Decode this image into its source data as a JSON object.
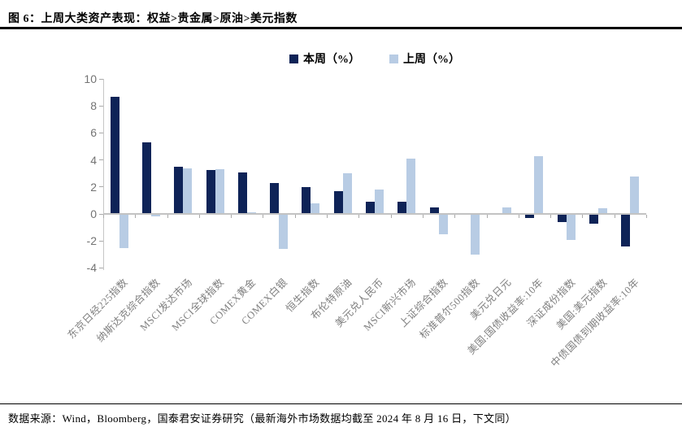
{
  "header": {
    "title": "图 6：上周大类资产表现：权益>贵金属>原油>美元指数"
  },
  "footer": {
    "source": "数据来源：Wind，Bloomberg，国泰君安证券研究（最新海外市场数据均截至 2024 年 8 月 16 日，下文同）"
  },
  "chart_data": {
    "type": "bar",
    "title": "上周大类资产表现：权益>贵金属>原油>美元指数",
    "categories": [
      "东京日经225指数",
      "纳斯达克综合指数",
      "MSCI发达市场",
      "MSCI全球指数",
      "COMEX黄金",
      "COMEX白银",
      "恒生指数",
      "布伦特原油",
      "美元兑人民币",
      "MSCI新兴市场",
      "上证综合指数",
      "标准普尔500指数",
      "美元兑日元",
      "美国:国债收益率:10年",
      "深证成份指数",
      "美国:美元指数",
      "中债国债到期收益率:10年"
    ],
    "series": [
      {
        "name": "本周（%）",
        "color": "#0E2357",
        "values": [
          8.7,
          5.3,
          3.5,
          3.25,
          3.1,
          2.3,
          2.0,
          1.7,
          0.9,
          0.9,
          0.5,
          0,
          0,
          -0.3,
          -0.6,
          -0.7,
          -2.4
        ]
      },
      {
        "name": "上周（%）",
        "color": "#B8CCE4",
        "values": [
          -2.5,
          -0.2,
          3.4,
          3.3,
          0.15,
          -2.6,
          0.8,
          3.0,
          1.8,
          4.1,
          -1.5,
          -3.0,
          0.5,
          4.3,
          -1.9,
          0.45,
          2.8
        ]
      }
    ],
    "ylim": [
      -4,
      10
    ],
    "yticks": [
      10,
      8,
      6,
      4,
      2,
      0,
      -2,
      -4
    ],
    "grid": false,
    "legend_position": "top"
  }
}
